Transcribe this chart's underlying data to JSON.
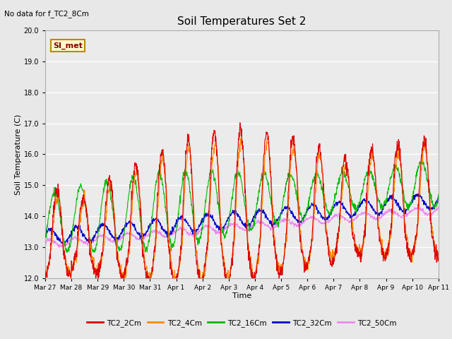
{
  "title": "Soil Temperatures Set 2",
  "top_left_text": "No data for f_TC2_8Cm",
  "xlabel": "Time",
  "ylabel": "Soil Temperature (C)",
  "ylim": [
    12.0,
    20.0
  ],
  "yticks": [
    12.0,
    13.0,
    14.0,
    15.0,
    16.0,
    17.0,
    18.0,
    19.0,
    20.0
  ],
  "bg_color": "#e8e8e8",
  "plot_bg_color": "#ebebeb",
  "legend_label": "SI_met",
  "legend_bg": "#ffffcc",
  "legend_border": "#bb8800",
  "series_colors": {
    "TC2_2Cm": "#dd0000",
    "TC2_4Cm": "#ff8800",
    "TC2_16Cm": "#00bb00",
    "TC2_32Cm": "#0000cc",
    "TC2_50Cm": "#ee88ee"
  },
  "x_tick_labels": [
    "Mar 27",
    "Mar 28",
    "Mar 29",
    "Mar 30",
    "Mar 31",
    "Apr 1",
    "Apr 2",
    "Apr 3",
    "Apr 4",
    "Apr 5",
    "Apr 6",
    "Apr 7",
    "Apr 8",
    "Apr 9",
    "Apr 10",
    "Apr 11"
  ],
  "figsize": [
    6.4,
    4.8
  ],
  "dpi": 100
}
